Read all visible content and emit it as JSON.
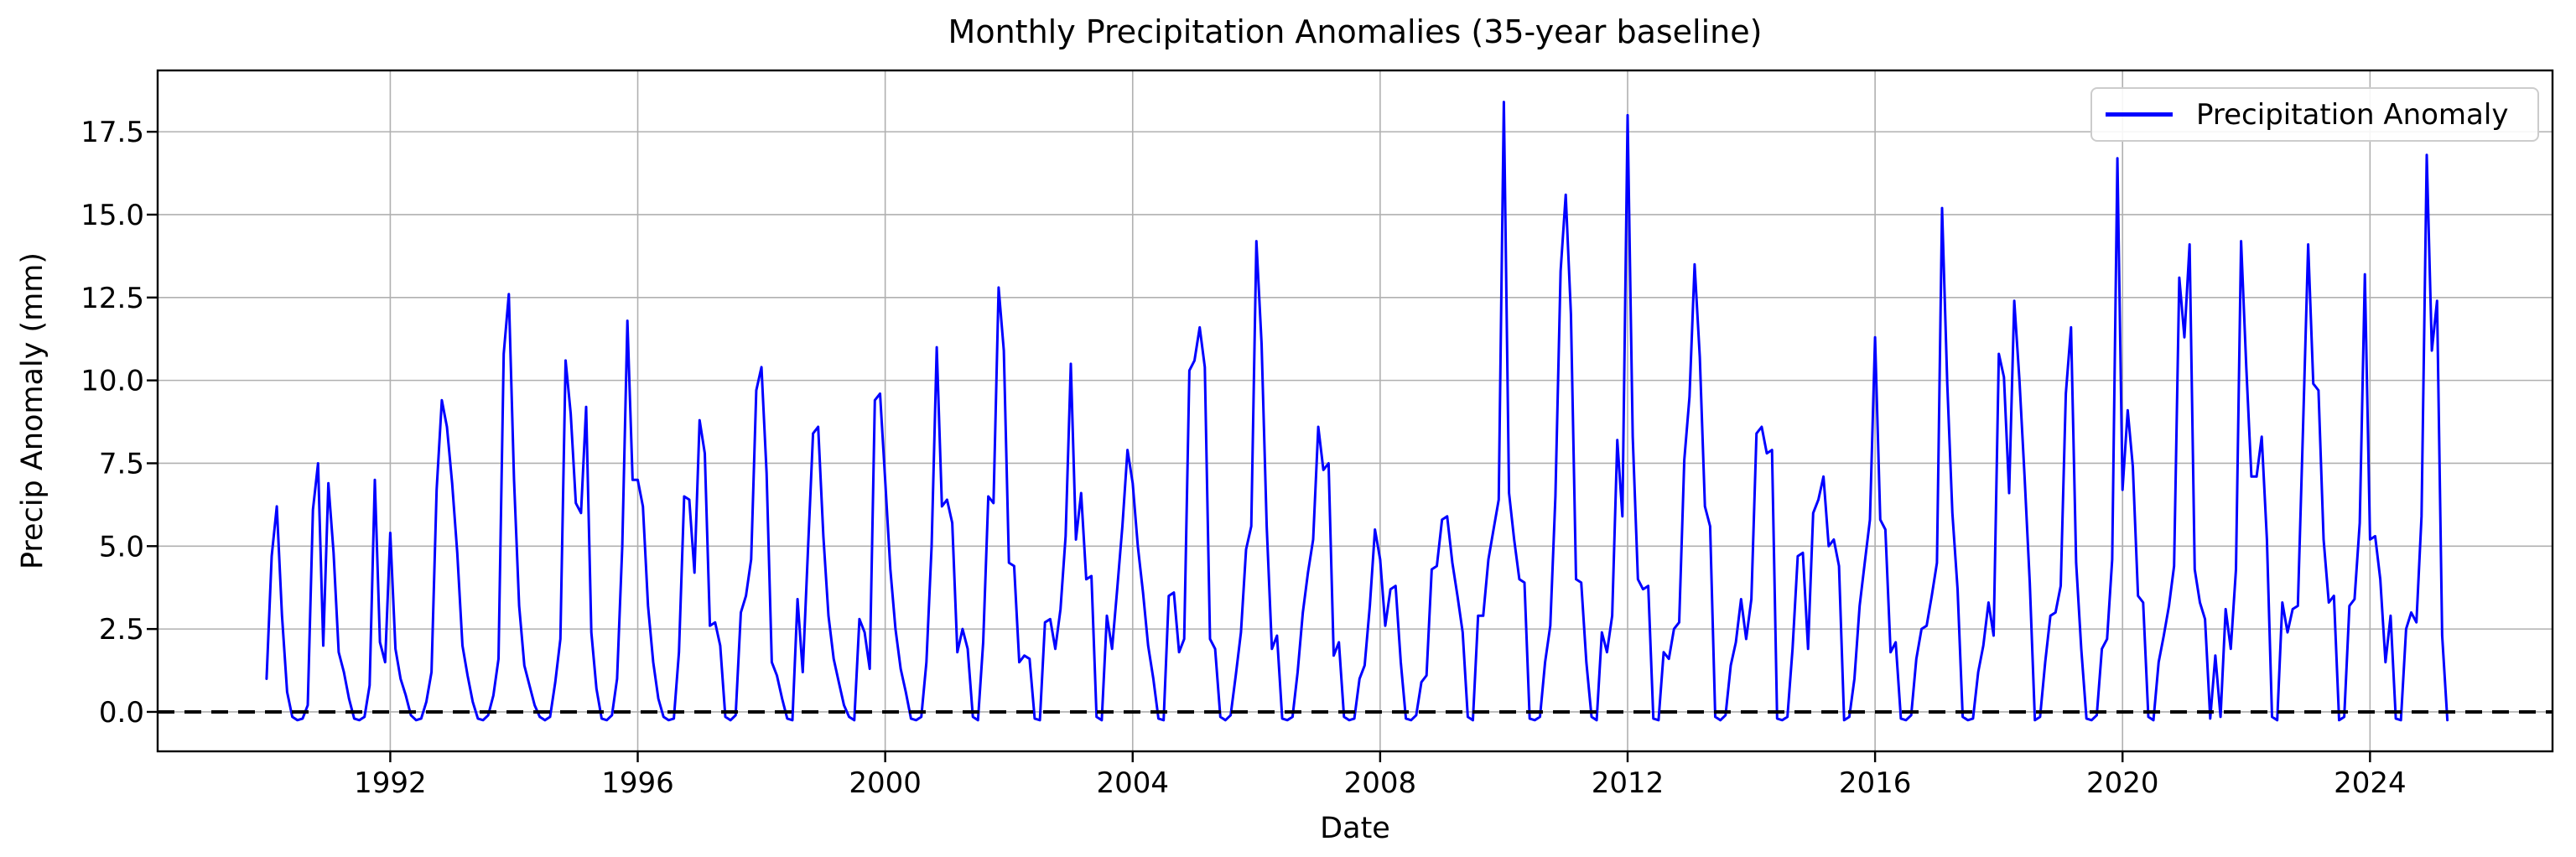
{
  "figure": {
    "background": "#ffffff"
  },
  "colors": {
    "line": "#0000ff",
    "grid": "#b0b0b0",
    "axes": "#000000",
    "baseline": "#000000",
    "legend_border": "#cccccc"
  },
  "chart_data": {
    "type": "line",
    "title": "Monthly Precipitation Anomalies (35-year baseline)",
    "xlabel": "Date",
    "ylabel": "Precip Anomaly (mm)",
    "legend": {
      "label": "Precipitation Anomaly",
      "position": "upper right"
    },
    "grid": true,
    "x_ticks": [
      1992,
      1996,
      2000,
      2004,
      2008,
      2012,
      2016,
      2020,
      2024
    ],
    "y_ticks": [
      0.0,
      2.5,
      5.0,
      7.5,
      10.0,
      12.5,
      15.0,
      17.5
    ],
    "xlim": [
      1988.24,
      2026.95
    ],
    "ylim": [
      -1.19,
      19.35
    ],
    "baseline": {
      "y": 0,
      "style": "dashed",
      "color": "#000000"
    },
    "series": [
      {
        "name": "Precipitation Anomaly",
        "color": "#0000ff",
        "start": "1990-01",
        "end": "2025-04",
        "frequency": "monthly",
        "values": [
          1.0,
          4.7,
          6.2,
          2.9,
          0.6,
          -0.15,
          -0.25,
          -0.2,
          0.2,
          6.1,
          7.5,
          2.0,
          6.9,
          4.8,
          1.8,
          1.2,
          0.4,
          -0.2,
          -0.25,
          -0.15,
          0.8,
          7.0,
          2.1,
          1.5,
          5.4,
          1.9,
          1.0,
          0.5,
          -0.1,
          -0.25,
          -0.2,
          0.3,
          1.2,
          6.7,
          9.4,
          8.6,
          6.9,
          4.8,
          2.0,
          1.1,
          0.3,
          -0.2,
          -0.25,
          -0.1,
          0.5,
          1.6,
          10.8,
          12.6,
          7.0,
          3.2,
          1.4,
          0.8,
          0.2,
          -0.15,
          -0.25,
          -0.15,
          0.9,
          2.2,
          10.6,
          9.0,
          6.3,
          6.0,
          9.2,
          2.4,
          0.7,
          -0.2,
          -0.25,
          -0.1,
          1.0,
          5.0,
          11.8,
          7.0,
          7.0,
          6.2,
          3.2,
          1.5,
          0.4,
          -0.15,
          -0.25,
          -0.2,
          1.8,
          6.5,
          6.4,
          4.2,
          8.8,
          7.8,
          2.6,
          2.7,
          2.0,
          -0.15,
          -0.25,
          -0.1,
          3.0,
          3.5,
          4.6,
          9.7,
          10.4,
          7.2,
          1.5,
          1.1,
          0.4,
          -0.2,
          -0.25,
          3.4,
          1.2,
          4.8,
          8.4,
          8.6,
          5.3,
          2.9,
          1.6,
          0.9,
          0.2,
          -0.15,
          -0.25,
          2.8,
          2.4,
          1.3,
          9.4,
          9.6,
          7.0,
          4.3,
          2.5,
          1.3,
          0.6,
          -0.2,
          -0.25,
          -0.15,
          1.5,
          5.0,
          11.0,
          6.2,
          6.4,
          5.7,
          1.8,
          2.5,
          1.9,
          -0.15,
          -0.25,
          2.1,
          6.5,
          6.3,
          12.8,
          10.9,
          4.5,
          4.4,
          1.5,
          1.7,
          1.6,
          -0.2,
          -0.25,
          2.7,
          2.8,
          1.9,
          3.1,
          5.3,
          10.5,
          5.2,
          6.6,
          4.0,
          4.1,
          -0.15,
          -0.25,
          2.9,
          1.9,
          3.7,
          5.6,
          7.9,
          6.9,
          5.0,
          3.6,
          2.0,
          1.0,
          -0.2,
          -0.25,
          3.5,
          3.6,
          1.8,
          2.2,
          10.3,
          10.6,
          11.6,
          10.4,
          2.2,
          1.9,
          -0.15,
          -0.25,
          -0.1,
          1.1,
          2.4,
          4.9,
          5.6,
          14.2,
          11.1,
          5.6,
          1.9,
          2.3,
          -0.2,
          -0.25,
          -0.15,
          1.2,
          3.0,
          4.2,
          5.2,
          8.6,
          7.3,
          7.5,
          1.7,
          2.1,
          -0.15,
          -0.25,
          -0.2,
          1.0,
          1.4,
          3.2,
          5.5,
          4.6,
          2.6,
          3.7,
          3.8,
          1.5,
          -0.2,
          -0.25,
          -0.1,
          0.9,
          1.1,
          4.3,
          4.4,
          5.8,
          5.9,
          4.5,
          3.5,
          2.4,
          -0.15,
          -0.25,
          2.9,
          2.9,
          4.6,
          5.5,
          6.4,
          18.4,
          6.6,
          5.2,
          4.0,
          3.9,
          -0.2,
          -0.25,
          -0.15,
          1.5,
          2.6,
          6.5,
          13.3,
          15.6,
          12.0,
          4.0,
          3.9,
          1.5,
          -0.15,
          -0.25,
          2.4,
          1.8,
          2.9,
          8.2,
          5.9,
          18.0,
          8.3,
          4.0,
          3.7,
          3.8,
          -0.2,
          -0.25,
          1.8,
          1.6,
          2.5,
          2.7,
          7.6,
          9.5,
          13.5,
          10.7,
          6.2,
          5.6,
          -0.15,
          -0.25,
          -0.1,
          1.4,
          2.1,
          3.4,
          2.2,
          3.4,
          8.4,
          8.6,
          7.8,
          7.9,
          -0.2,
          -0.25,
          -0.15,
          1.9,
          4.7,
          4.8,
          1.9,
          6.0,
          6.4,
          7.1,
          5.0,
          5.2,
          4.4,
          -0.25,
          -0.15,
          1.0,
          3.2,
          4.5,
          5.8,
          11.3,
          5.8,
          5.5,
          1.8,
          2.1,
          -0.2,
          -0.25,
          -0.1,
          1.6,
          2.5,
          2.6,
          3.5,
          4.5,
          15.2,
          9.9,
          6.0,
          3.7,
          -0.15,
          -0.25,
          -0.2,
          1.2,
          2.0,
          3.3,
          2.3,
          10.8,
          10.1,
          6.6,
          12.4,
          10.0,
          7.1,
          3.9,
          -0.25,
          -0.15,
          1.5,
          2.9,
          3.0,
          3.8,
          9.6,
          11.6,
          4.5,
          1.9,
          -0.2,
          -0.25,
          -0.1,
          1.9,
          2.2,
          4.6,
          16.7,
          6.7,
          9.1,
          7.4,
          3.5,
          3.3,
          -0.15,
          -0.25,
          1.5,
          2.3,
          3.2,
          4.4,
          13.1,
          11.3,
          14.1,
          4.3,
          3.3,
          2.8,
          -0.2,
          1.7,
          -0.15,
          3.1,
          1.9,
          4.3,
          14.2,
          10.4,
          7.1,
          7.1,
          8.3,
          5.2,
          -0.15,
          -0.25,
          3.3,
          2.4,
          3.1,
          3.2,
          8.5,
          14.1,
          9.9,
          9.7,
          5.2,
          3.3,
          3.5,
          -0.25,
          -0.15,
          3.2,
          3.4,
          5.7,
          13.2,
          5.2,
          5.3,
          4.0,
          1.5,
          2.9,
          -0.2,
          -0.25,
          2.5,
          3.0,
          2.7,
          5.9,
          16.8,
          10.9,
          12.4,
          2.3,
          -0.25
        ]
      }
    ]
  }
}
